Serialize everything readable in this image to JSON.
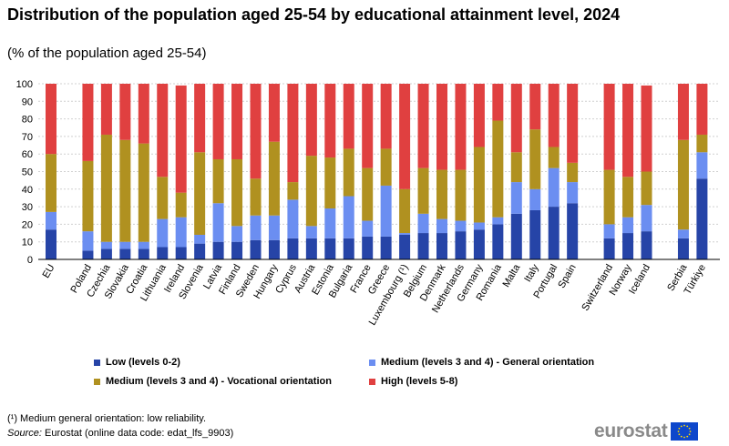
{
  "chart_data": {
    "type": "bar",
    "stacked": true,
    "title": "Distribution of the population aged 25-54 by educational attainment level, 2024",
    "subtitle": "(% of the population aged 25-54)",
    "ylim": [
      0,
      100
    ],
    "yticks": [
      0,
      10,
      20,
      30,
      40,
      50,
      60,
      70,
      80,
      90,
      100
    ],
    "grid": true,
    "legend_position": "bottom",
    "categories": [
      "EU",
      "Poland",
      "Czechia",
      "Slovakia",
      "Croatia",
      "Lithuania",
      "Ireland",
      "Slovenia",
      "Latvia",
      "Finland",
      "Sweden",
      "Hungary",
      "Cyprus",
      "Austria",
      "Estonia",
      "Bulgaria",
      "France",
      "Greece",
      "Luxembourg (¹)",
      "Belgium",
      "Denmark",
      "Netherlands",
      "Germany",
      "Romania",
      "Malta",
      "Italy",
      "Portugal",
      "Spain",
      "Switzerland",
      "Norway",
      "Iceland",
      "Serbia",
      "Türkiye"
    ],
    "groups": [
      1,
      2,
      2,
      2,
      2,
      2,
      2,
      2,
      2,
      2,
      2,
      2,
      2,
      2,
      2,
      2,
      2,
      2,
      2,
      2,
      2,
      2,
      2,
      2,
      2,
      2,
      2,
      2,
      3,
      3,
      3,
      4,
      4
    ],
    "series": [
      {
        "name": "Low (levels 0-2)",
        "color": "#2644a7",
        "values": [
          17,
          5,
          6,
          6,
          6,
          7,
          7,
          9,
          10,
          10,
          11,
          11,
          12,
          12,
          12,
          12,
          13,
          13,
          14,
          15,
          15,
          16,
          17,
          20,
          26,
          28,
          30,
          32,
          12,
          15,
          16,
          12,
          46
        ]
      },
      {
        "name": "Medium (levels 3 and 4) - General orientation",
        "color": "#6b8ef1",
        "values": [
          10,
          11,
          4,
          4,
          4,
          16,
          17,
          5,
          22,
          9,
          14,
          14,
          22,
          7,
          17,
          24,
          9,
          29,
          1,
          11,
          8,
          6,
          4,
          4,
          18,
          12,
          22,
          12,
          8,
          9,
          15,
          5,
          15
        ]
      },
      {
        "name": "Medium (levels 3 and 4) - Vocational orientation",
        "color": "#b09120",
        "values": [
          33,
          40,
          61,
          58,
          56,
          24,
          14,
          47,
          25,
          38,
          21,
          42,
          10,
          40,
          29,
          27,
          30,
          21,
          25,
          26,
          28,
          29,
          43,
          55,
          17,
          34,
          12,
          11,
          31,
          23,
          19,
          51,
          10
        ]
      },
      {
        "name": "High (levels 5-8)",
        "color": "#e04040",
        "values": [
          40,
          44,
          29,
          32,
          34,
          53,
          61,
          39,
          43,
          43,
          54,
          33,
          56,
          41,
          42,
          37,
          48,
          37,
          60,
          48,
          49,
          49,
          36,
          21,
          39,
          26,
          36,
          45,
          49,
          53,
          49,
          32,
          29
        ]
      }
    ]
  },
  "footnote": "(¹) Medium general orientation: low reliability.",
  "source": {
    "label": "Source:",
    "text": "Eurostat (online data code: edat_lfs_9903)"
  },
  "logo": {
    "text": "eurostat",
    "flag_color": "#0e47cb",
    "star_color": "#ffdd00"
  }
}
